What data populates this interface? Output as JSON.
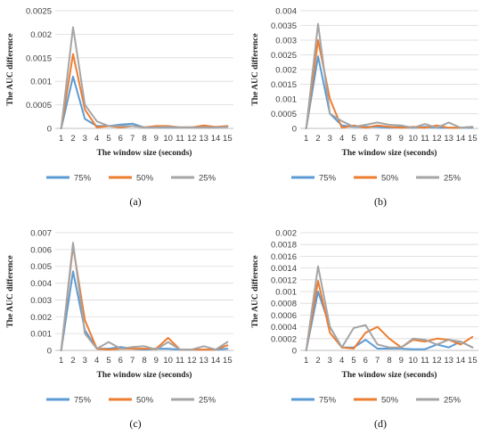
{
  "legend": [
    "75%",
    "50%",
    "25%"
  ],
  "colors": {
    "75%": "#5b9bd5",
    "50%": "#ed7d31",
    "25%": "#a5a5a5"
  },
  "chart_data": [
    {
      "type": "line",
      "caption": "(a)",
      "xlabel": "The window size (seconds)",
      "ylabel": "The AUC difference",
      "x": [
        1,
        2,
        3,
        4,
        5,
        6,
        7,
        8,
        9,
        10,
        11,
        12,
        13,
        14,
        15
      ],
      "ylim": [
        0,
        0.0025
      ],
      "yticks": [
        "0",
        "0.0005",
        "0.001",
        "0.0015",
        "0.002",
        "0.0025"
      ],
      "ytick_values": [
        0,
        0.0005,
        0.001,
        0.0015,
        0.002,
        0.0025
      ],
      "grid": true,
      "legend_position": "bottom",
      "series": [
        {
          "name": "75%",
          "values": [
            0,
            0.0011,
            0.0002,
            5e-05,
            5e-05,
            8e-05,
            0.0001,
            2e-05,
            2e-05,
            2e-05,
            2e-05,
            2e-05,
            2e-05,
            2e-05,
            5e-05
          ]
        },
        {
          "name": "50%",
          "values": [
            0,
            0.00158,
            0.0004,
            2e-05,
            5e-05,
            2e-05,
            5e-05,
            2e-05,
            5e-05,
            5e-05,
            2e-05,
            2e-05,
            6e-05,
            3e-05,
            5e-05
          ]
        },
        {
          "name": "25%",
          "values": [
            0,
            0.00215,
            0.0005,
            0.00015,
            5e-05,
            5e-05,
            5e-05,
            2e-05,
            2e-05,
            3e-05,
            2e-05,
            2e-05,
            2e-05,
            2e-05,
            3e-05
          ]
        }
      ]
    },
    {
      "type": "line",
      "caption": "(b)",
      "xlabel": "The window size (seconds)",
      "ylabel": "The AUC difference",
      "x": [
        1,
        2,
        3,
        4,
        5,
        6,
        7,
        8,
        9,
        10,
        11,
        12,
        13,
        14,
        15
      ],
      "ylim": [
        0,
        0.004
      ],
      "yticks": [
        "0",
        "0.0005",
        "0.001",
        "0.0015",
        "0.002",
        "0.0025",
        "0.003",
        "0.0035",
        "0.004"
      ],
      "ytick_values": [
        0,
        0.0005,
        0.001,
        0.0015,
        0.002,
        0.0025,
        0.003,
        0.0035,
        0.004
      ],
      "grid": true,
      "legend_position": "bottom",
      "series": [
        {
          "name": "75%",
          "values": [
            0,
            0.00245,
            0.0005,
            0.0001,
            5e-05,
            5e-05,
            5e-05,
            2e-05,
            5e-05,
            2e-05,
            5e-05,
            2e-05,
            2e-05,
            2e-05,
            2e-05
          ]
        },
        {
          "name": "50%",
          "values": [
            0,
            0.003,
            0.001,
            2e-05,
            0.0001,
            2e-05,
            0.0001,
            5e-05,
            2e-05,
            5e-05,
            2e-05,
            0.0001,
            2e-05,
            2e-05,
            5e-05
          ]
        },
        {
          "name": "25%",
          "values": [
            0,
            0.00355,
            0.0005,
            0.00025,
            5e-05,
            0.00012,
            0.0002,
            0.00012,
            0.0001,
            2e-05,
            0.00015,
            2e-05,
            0.0002,
            2e-05,
            5e-05
          ]
        }
      ]
    },
    {
      "type": "line",
      "caption": "(c)",
      "xlabel": "The window size (seconds)",
      "ylabel": "The AUC difference",
      "x": [
        1,
        2,
        3,
        4,
        5,
        6,
        7,
        8,
        9,
        10,
        11,
        12,
        13,
        14,
        15
      ],
      "ylim": [
        0,
        0.007
      ],
      "yticks": [
        "0",
        "0.001",
        "0.002",
        "0.003",
        "0.004",
        "0.005",
        "0.006",
        "0.007"
      ],
      "ytick_values": [
        0,
        0.001,
        0.002,
        0.003,
        0.004,
        0.005,
        0.006,
        0.007
      ],
      "grid": true,
      "legend_position": "bottom",
      "series": [
        {
          "name": "75%",
          "values": [
            0,
            0.0047,
            0.0012,
            0.0001,
            0.0001,
            0.0002,
            0.0001,
            5e-05,
            0.0001,
            0.0001,
            5e-05,
            5e-05,
            5e-05,
            5e-05,
            0.0001
          ]
        },
        {
          "name": "50%",
          "values": [
            0,
            0.0062,
            0.0018,
            0.0001,
            5e-05,
            0.0001,
            0.0001,
            0.0001,
            0.0001,
            0.00075,
            5e-05,
            5e-05,
            5e-05,
            5e-05,
            0.0003
          ]
        },
        {
          "name": "25%",
          "values": [
            0,
            0.0064,
            0.001,
            0.0001,
            0.0005,
            0.0001,
            0.0002,
            0.00025,
            5e-05,
            0.0005,
            5e-05,
            5e-05,
            0.00025,
            5e-05,
            0.0005
          ]
        }
      ]
    },
    {
      "type": "line",
      "caption": "(d)",
      "xlabel": "The window size (seconds)",
      "ylabel": "The AUC difference",
      "x": [
        1,
        2,
        3,
        4,
        5,
        6,
        7,
        8,
        9,
        10,
        11,
        12,
        13,
        14,
        15
      ],
      "ylim": [
        0,
        0.002
      ],
      "yticks": [
        "0",
        "0.0002",
        "0.0004",
        "0.0006",
        "0.0008",
        "0.001",
        "0.0012",
        "0.0014",
        "0.0016",
        "0.0018",
        "0.002"
      ],
      "ytick_values": [
        0,
        0.0002,
        0.0004,
        0.0006,
        0.0008,
        0.001,
        0.0012,
        0.0014,
        0.0016,
        0.0018,
        0.002
      ],
      "grid": true,
      "legend_position": "bottom",
      "series": [
        {
          "name": "75%",
          "values": [
            0,
            0.001,
            0.0004,
            5e-05,
            5e-05,
            0.00018,
            3e-05,
            3e-05,
            3e-05,
            2e-05,
            2e-05,
            0.0001,
            5e-05,
            0.00015,
            5e-05
          ]
        },
        {
          "name": "50%",
          "values": [
            0,
            0.00118,
            0.0003,
            5e-05,
            3e-05,
            0.0003,
            0.0004,
            0.0002,
            5e-05,
            0.00018,
            0.00015,
            0.0002,
            0.00018,
            0.0001,
            0.00023
          ]
        },
        {
          "name": "25%",
          "values": [
            0,
            0.00143,
            0.0004,
            5e-05,
            0.00038,
            0.00043,
            0.0001,
            5e-05,
            5e-05,
            0.0002,
            0.00018,
            0.0001,
            0.00018,
            0.00015,
            5e-05
          ]
        }
      ]
    }
  ]
}
